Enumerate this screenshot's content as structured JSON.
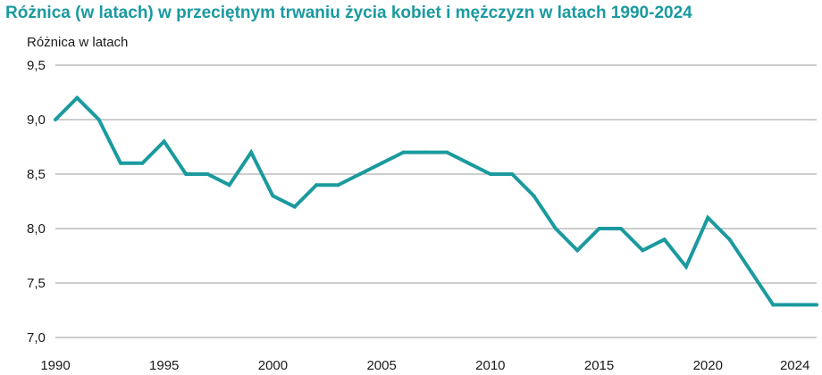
{
  "colors": {
    "line": "#1a9a9f",
    "title": "#1a9a9f",
    "grid": "#9a9a9a",
    "text": "#1a1a1a"
  },
  "chart_data": {
    "type": "line",
    "title": "Różnica (w latach) w przeciętnym trwaniu życia kobiet i mężczyzn w latach 1990-2024",
    "ylabel": "Różnica w latach",
    "xlabel": "",
    "ylim": [
      7.0,
      9.5
    ],
    "xlim": [
      1990,
      2025
    ],
    "grid": "horizontal",
    "y_ticks": [
      "7,0",
      "7,5",
      "8,0",
      "8,5",
      "9,0",
      "9,5"
    ],
    "y_tick_values": [
      7.0,
      7.5,
      8.0,
      8.5,
      9.0,
      9.5
    ],
    "x_ticks": [
      "1990",
      "1995",
      "2000",
      "2005",
      "2010",
      "2015",
      "2020",
      "2024"
    ],
    "x_tick_values": [
      1990,
      1995,
      2000,
      2005,
      2010,
      2015,
      2020,
      2024
    ],
    "series": [
      {
        "x": [
          1990,
          1991,
          1992,
          1993,
          1994,
          1995,
          1996,
          1997,
          1998,
          1999,
          2000,
          2001,
          2002,
          2003,
          2004,
          2005,
          2006,
          2007,
          2008,
          2009,
          2010,
          2011,
          2012,
          2013,
          2014,
          2015,
          2016,
          2017,
          2018,
          2019,
          2020,
          2021,
          2022,
          2023,
          2024,
          2025
        ],
        "values": [
          9.0,
          9.2,
          9.0,
          8.6,
          8.6,
          8.8,
          8.5,
          8.5,
          8.4,
          8.7,
          8.3,
          8.2,
          8.4,
          8.4,
          8.5,
          8.6,
          8.7,
          8.7,
          8.7,
          8.6,
          8.5,
          8.5,
          8.3,
          8.0,
          7.8,
          8.0,
          8.0,
          7.8,
          7.9,
          7.65,
          8.1,
          7.9,
          7.6,
          7.3,
          7.3,
          7.3
        ]
      }
    ]
  }
}
